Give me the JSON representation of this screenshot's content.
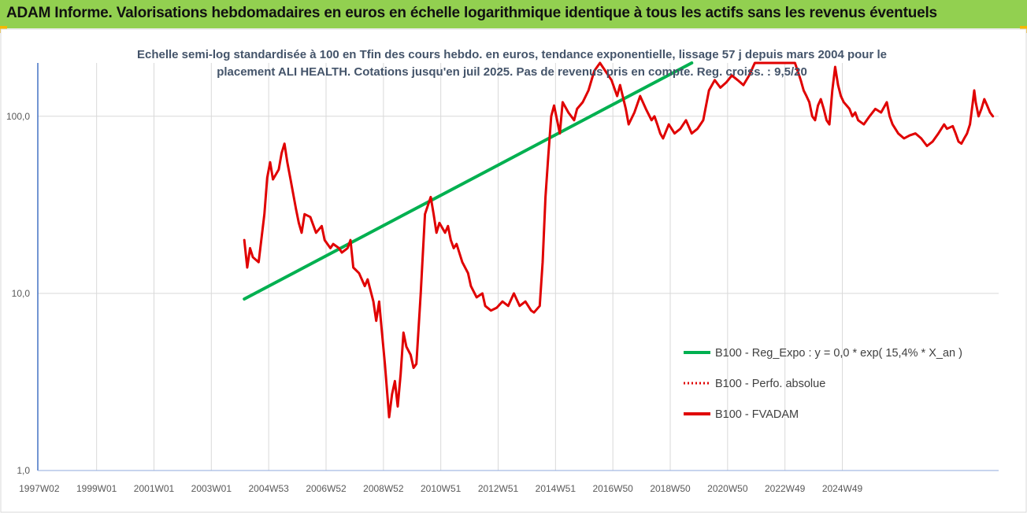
{
  "header": {
    "title": "ADAM Informe. Valorisations hebdomadaires en euros en échelle logarithmique identique à tous les actifs sans les revenus éventuels",
    "background": "#92d050"
  },
  "chart_data": {
    "type": "line",
    "title_line1": "Echelle semi-log standardisée à 100 en Tfin des cours hebdo. en euros, tendance exponentielle, lissage 57 j depuis mars 2004 pour le",
    "title_line2": "placement ALI HEALTH. Cotations jusqu'en juil 2025. Pas de revenus pris en compte. Reg. croiss. : 9,5/20",
    "y_scale": "log",
    "ylim": [
      1,
      200
    ],
    "y_ticks": [
      "1,0",
      "10,0",
      "100,0"
    ],
    "x_ticks": [
      "1997W02",
      "1999W01",
      "2001W01",
      "2003W01",
      "2004W53",
      "2006W52",
      "2008W52",
      "2010W51",
      "2012W51",
      "2014W51",
      "2016W50",
      "2018W50",
      "2020W50",
      "2022W49",
      "2024W49"
    ],
    "grid": true,
    "legend_position": "bottom-right",
    "series": [
      {
        "name": "B100 - Reg_Expo : y = 0,0 * exp( 15,4% *  X_an )",
        "color": "#00b050",
        "style": "solid",
        "points": [
          [
            2004.2,
            9.3
          ],
          [
            2019.8,
            200
          ]
        ]
      },
      {
        "name": "B100 - Perfo. absolue",
        "color": "#e00000",
        "style": "dotted",
        "points": []
      },
      {
        "name": "B100 - FVADAM",
        "color": "#e00000",
        "style": "solid",
        "points": [
          [
            2004.2,
            20
          ],
          [
            2004.3,
            14
          ],
          [
            2004.4,
            18
          ],
          [
            2004.5,
            16
          ],
          [
            2004.7,
            15
          ],
          [
            2004.9,
            28
          ],
          [
            2005.0,
            45
          ],
          [
            2005.1,
            55
          ],
          [
            2005.2,
            44
          ],
          [
            2005.4,
            50
          ],
          [
            2005.5,
            62
          ],
          [
            2005.6,
            70
          ],
          [
            2005.7,
            55
          ],
          [
            2005.8,
            45
          ],
          [
            2006.0,
            30
          ],
          [
            2006.1,
            25
          ],
          [
            2006.2,
            22
          ],
          [
            2006.3,
            28
          ],
          [
            2006.5,
            27
          ],
          [
            2006.7,
            22
          ],
          [
            2006.9,
            24
          ],
          [
            2007.0,
            20
          ],
          [
            2007.2,
            18
          ],
          [
            2007.3,
            19
          ],
          [
            2007.5,
            18
          ],
          [
            2007.6,
            17
          ],
          [
            2007.8,
            18
          ],
          [
            2007.9,
            20
          ],
          [
            2008.0,
            14
          ],
          [
            2008.2,
            13
          ],
          [
            2008.4,
            11
          ],
          [
            2008.5,
            12
          ],
          [
            2008.7,
            9
          ],
          [
            2008.8,
            7
          ],
          [
            2008.9,
            9
          ],
          [
            2009.0,
            6
          ],
          [
            2009.1,
            4
          ],
          [
            2009.25,
            2.0
          ],
          [
            2009.35,
            2.7
          ],
          [
            2009.45,
            3.2
          ],
          [
            2009.55,
            2.3
          ],
          [
            2009.65,
            3.5
          ],
          [
            2009.75,
            6.0
          ],
          [
            2009.85,
            5.0
          ],
          [
            2010.0,
            4.5
          ],
          [
            2010.1,
            3.8
          ],
          [
            2010.2,
            4.0
          ],
          [
            2010.35,
            10
          ],
          [
            2010.5,
            28
          ],
          [
            2010.7,
            35
          ],
          [
            2010.8,
            28
          ],
          [
            2010.9,
            22
          ],
          [
            2011.0,
            25
          ],
          [
            2011.2,
            22
          ],
          [
            2011.3,
            24
          ],
          [
            2011.4,
            20
          ],
          [
            2011.5,
            18
          ],
          [
            2011.6,
            19
          ],
          [
            2011.8,
            15
          ],
          [
            2012.0,
            13
          ],
          [
            2012.1,
            11
          ],
          [
            2012.3,
            9.5
          ],
          [
            2012.5,
            10
          ],
          [
            2012.6,
            8.5
          ],
          [
            2012.8,
            8.0
          ],
          [
            2013.0,
            8.3
          ],
          [
            2013.2,
            9.0
          ],
          [
            2013.4,
            8.5
          ],
          [
            2013.6,
            10
          ],
          [
            2013.8,
            8.5
          ],
          [
            2014.0,
            9.0
          ],
          [
            2014.2,
            8.0
          ],
          [
            2014.3,
            7.8
          ],
          [
            2014.5,
            8.5
          ],
          [
            2014.6,
            15
          ],
          [
            2014.7,
            35
          ],
          [
            2014.8,
            60
          ],
          [
            2014.9,
            100
          ],
          [
            2015.0,
            115
          ],
          [
            2015.2,
            80
          ],
          [
            2015.3,
            120
          ],
          [
            2015.5,
            105
          ],
          [
            2015.7,
            95
          ],
          [
            2015.8,
            110
          ],
          [
            2016.0,
            120
          ],
          [
            2016.2,
            140
          ],
          [
            2016.4,
            180
          ],
          [
            2016.6,
            200
          ],
          [
            2017.0,
            160
          ],
          [
            2017.2,
            130
          ],
          [
            2017.3,
            150
          ],
          [
            2017.5,
            110
          ],
          [
            2017.6,
            90
          ],
          [
            2017.8,
            105
          ],
          [
            2018.0,
            130
          ],
          [
            2018.2,
            110
          ],
          [
            2018.4,
            95
          ],
          [
            2018.5,
            100
          ],
          [
            2018.6,
            90
          ],
          [
            2018.7,
            80
          ],
          [
            2018.8,
            75
          ],
          [
            2019.0,
            90
          ],
          [
            2019.2,
            80
          ],
          [
            2019.4,
            85
          ],
          [
            2019.6,
            95
          ],
          [
            2019.8,
            80
          ],
          [
            2020.0,
            85
          ],
          [
            2020.2,
            95
          ],
          [
            2020.4,
            140
          ],
          [
            2020.6,
            160
          ],
          [
            2020.8,
            145
          ],
          [
            2021.0,
            155
          ],
          [
            2021.2,
            170
          ],
          [
            2021.4,
            160
          ],
          [
            2021.6,
            150
          ],
          [
            2021.8,
            170
          ],
          [
            2022.0,
            200
          ],
          [
            2022.2,
            200
          ],
          [
            2022.4,
            200
          ],
          [
            2023.0,
            200
          ],
          [
            2023.4,
            200
          ],
          [
            2023.6,
            160
          ],
          [
            2023.7,
            140
          ],
          [
            2023.8,
            130
          ],
          [
            2023.9,
            120
          ],
          [
            2024.0,
            100
          ],
          [
            2024.1,
            95
          ],
          [
            2024.2,
            115
          ],
          [
            2024.3,
            125
          ],
          [
            2024.4,
            110
          ],
          [
            2024.5,
            95
          ],
          [
            2024.6,
            90
          ],
          [
            2024.7,
            140
          ],
          [
            2024.8,
            190
          ],
          [
            2024.9,
            150
          ],
          [
            2025.0,
            130
          ],
          [
            2025.1,
            120
          ],
          [
            2025.2,
            115
          ],
          [
            2025.3,
            110
          ],
          [
            2025.4,
            100
          ],
          [
            2025.5,
            105
          ],
          [
            2025.6,
            95
          ],
          [
            2025.8,
            90
          ],
          [
            2026.0,
            100
          ],
          [
            2026.2,
            110
          ],
          [
            2026.4,
            105
          ],
          [
            2026.6,
            120
          ],
          [
            2026.7,
            100
          ],
          [
            2026.8,
            90
          ],
          [
            2027.0,
            80
          ],
          [
            2027.2,
            75
          ],
          [
            2027.4,
            78
          ],
          [
            2027.6,
            80
          ],
          [
            2027.8,
            75
          ],
          [
            2028.0,
            68
          ],
          [
            2028.2,
            72
          ],
          [
            2028.4,
            80
          ],
          [
            2028.6,
            90
          ],
          [
            2028.7,
            85
          ],
          [
            2028.9,
            88
          ],
          [
            2029.0,
            80
          ],
          [
            2029.1,
            72
          ],
          [
            2029.2,
            70
          ],
          [
            2029.3,
            75
          ],
          [
            2029.4,
            80
          ],
          [
            2029.5,
            90
          ],
          [
            2029.6,
            120
          ],
          [
            2029.65,
            140
          ],
          [
            2029.7,
            120
          ],
          [
            2029.8,
            100
          ],
          [
            2029.9,
            110
          ],
          [
            2030.0,
            125
          ],
          [
            2030.1,
            115
          ],
          [
            2030.2,
            105
          ],
          [
            2030.3,
            100
          ]
        ]
      }
    ]
  }
}
